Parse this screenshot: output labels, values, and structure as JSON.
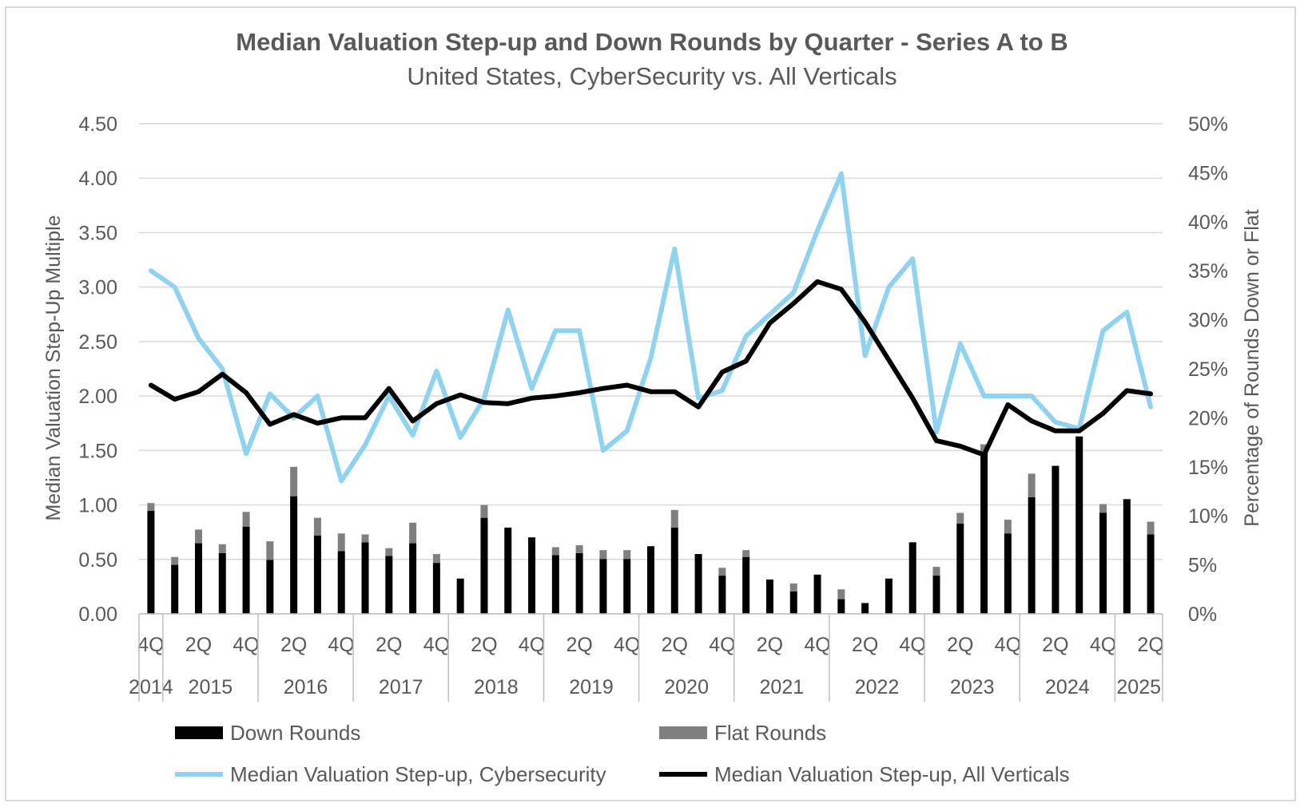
{
  "chart_data": {
    "type": "bar+line",
    "title": "Median Valuation Step-up and Down Rounds by Quarter - Series A to B",
    "subtitle": "United States, CyberSecurity vs. All Verticals",
    "y_left_label": "Median Valuation Step-Up Multiple",
    "y_right_label": "Percentage of Rounds Down or Flat",
    "y_left_ticks": [
      "0.00",
      "0.50",
      "1.00",
      "1.50",
      "2.00",
      "2.50",
      "3.00",
      "3.50",
      "4.00",
      "4.50"
    ],
    "y_right_ticks": [
      "0%",
      "5%",
      "10%",
      "15%",
      "20%",
      "25%",
      "30%",
      "35%",
      "40%",
      "45%",
      "50%"
    ],
    "y_left_range": [
      0,
      4.5
    ],
    "y_right_range": [
      0,
      50
    ],
    "grid": true,
    "legend_position": "bottom",
    "quarter_labels": [
      "4Q",
      "",
      "2Q",
      "",
      "4Q",
      "",
      "2Q",
      "",
      "4Q",
      "",
      "2Q",
      "",
      "4Q",
      "",
      "2Q",
      "",
      "4Q",
      "",
      "2Q",
      "",
      "4Q",
      "",
      "2Q",
      "",
      "4Q",
      "",
      "2Q",
      "",
      "4Q",
      "",
      "2Q",
      "",
      "4Q",
      "",
      "2Q",
      "",
      "4Q",
      "",
      "2Q",
      "",
      "4Q",
      "",
      "2Q"
    ],
    "year_groups": [
      {
        "label": "2014",
        "count": 1
      },
      {
        "label": "2015",
        "count": 4
      },
      {
        "label": "2016",
        "count": 4
      },
      {
        "label": "2017",
        "count": 4
      },
      {
        "label": "2018",
        "count": 4
      },
      {
        "label": "2019",
        "count": 4
      },
      {
        "label": "2020",
        "count": 4
      },
      {
        "label": "2021",
        "count": 4
      },
      {
        "label": "2022",
        "count": 4
      },
      {
        "label": "2023",
        "count": 4
      },
      {
        "label": "2024",
        "count": 4
      },
      {
        "label": "2025",
        "count": 2
      }
    ],
    "series": [
      {
        "name": "Down Rounds",
        "axis": "right",
        "kind": "stacked-bar",
        "color": "#000000",
        "values": [
          10.5,
          5.0,
          7.2,
          6.2,
          8.9,
          5.5,
          12.0,
          8.0,
          6.4,
          7.3,
          5.9,
          7.2,
          5.2,
          3.6,
          9.8,
          8.8,
          7.8,
          6.0,
          6.2,
          5.6,
          5.6,
          6.9,
          8.8,
          6.1,
          3.9,
          5.8,
          3.5,
          2.3,
          4.0,
          1.5,
          1.1,
          3.6,
          7.3,
          3.9,
          9.2,
          16.5,
          8.2,
          11.9,
          15.1,
          18.1,
          10.3,
          11.7,
          8.1
        ]
      },
      {
        "name": "Flat Rounds",
        "axis": "right",
        "kind": "stacked-bar",
        "color": "#7f7f7f",
        "values": [
          0.8,
          0.8,
          1.4,
          0.9,
          1.5,
          1.9,
          3.0,
          1.8,
          1.8,
          0.8,
          0.8,
          2.1,
          0.9,
          0.0,
          1.3,
          0.0,
          0.0,
          0.8,
          0.8,
          0.9,
          0.9,
          0.0,
          1.8,
          0.0,
          0.8,
          0.7,
          0.0,
          0.8,
          0.0,
          1.0,
          0.0,
          0.0,
          0.0,
          0.9,
          1.1,
          0.8,
          1.4,
          2.4,
          0.0,
          0.0,
          0.9,
          0.0,
          1.3
        ]
      },
      {
        "name": "Median Valuation Step-up, Cybersecurity",
        "axis": "left",
        "kind": "line",
        "color": "#8fd3f0",
        "values": [
          3.15,
          3.0,
          2.53,
          2.25,
          1.47,
          2.02,
          1.8,
          2.0,
          1.22,
          1.55,
          2.0,
          1.64,
          2.23,
          1.62,
          1.98,
          2.79,
          2.07,
          2.6,
          2.6,
          1.5,
          1.68,
          2.35,
          3.35,
          1.98,
          2.05,
          2.55,
          2.75,
          2.95,
          3.52,
          4.04,
          2.37,
          3.0,
          3.26,
          1.67,
          2.48,
          2.0,
          2.0,
          2.0,
          1.76,
          1.7,
          2.6,
          2.77,
          1.9
        ]
      },
      {
        "name": "Median Valuation Step-up, All Verticals",
        "axis": "left",
        "kind": "line",
        "color": "#000000",
        "values": [
          2.1,
          1.97,
          2.04,
          2.2,
          2.03,
          1.74,
          1.83,
          1.75,
          1.8,
          1.8,
          2.07,
          1.77,
          1.93,
          2.01,
          1.94,
          1.93,
          1.98,
          2.0,
          2.03,
          2.07,
          2.1,
          2.04,
          2.04,
          1.9,
          2.22,
          2.32,
          2.67,
          2.85,
          3.05,
          2.98,
          2.68,
          2.33,
          1.98,
          1.59,
          1.54,
          1.46,
          1.92,
          1.77,
          1.68,
          1.68,
          1.84,
          2.05,
          2.02
        ]
      }
    ]
  }
}
